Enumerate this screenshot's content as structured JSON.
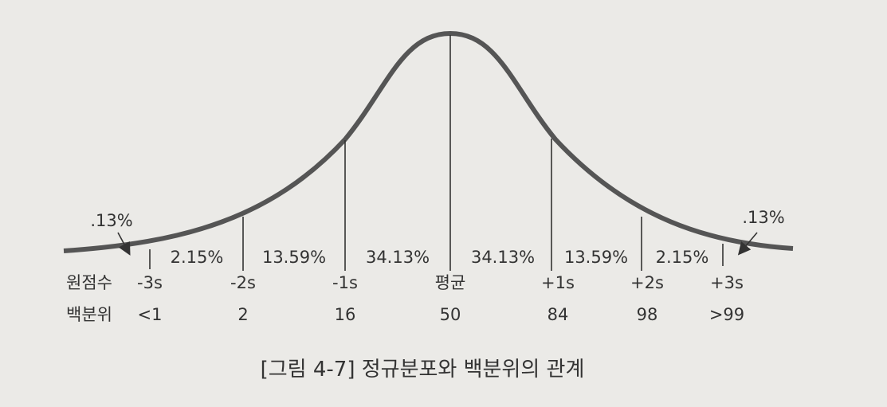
{
  "tails": {
    "left": ".13%",
    "right": ".13%"
  },
  "segments": [
    "2.15%",
    "13.59%",
    "34.13%",
    "34.13%",
    "13.59%",
    "2.15%"
  ],
  "rows": [
    {
      "label": "원점수",
      "cells": [
        "-3s",
        "-2s",
        "-1s",
        "평균",
        "+1s",
        "+2s",
        "+3s"
      ]
    },
    {
      "label": "백분위",
      "cells": [
        "<1",
        "2",
        "16",
        "50",
        "84",
        "98",
        ">99"
      ]
    }
  ],
  "caption": "[그림 4-7] 정규분포와 백분위의 관계"
}
